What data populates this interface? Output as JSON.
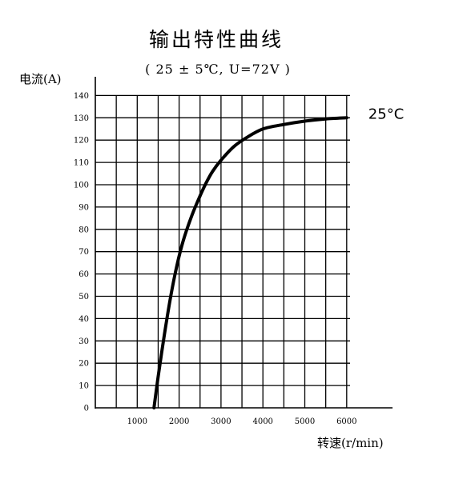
{
  "chart_data": {
    "type": "line",
    "title": "输出特性曲线",
    "subtitle": "( 25 ± 5℃, U=72V )",
    "ylabel": "电流(A)",
    "xlabel": "转速(r/min)",
    "xlim": [
      0,
      6000
    ],
    "ylim": [
      0,
      140
    ],
    "x_tick_labels": [
      "1000",
      "2000",
      "3000",
      "4000",
      "5000",
      "6000"
    ],
    "x_tick_values": [
      1000,
      2000,
      3000,
      4000,
      5000,
      6000
    ],
    "y_tick_labels": [
      "0",
      "10",
      "20",
      "30",
      "40",
      "50",
      "60",
      "70",
      "80",
      "90",
      "100",
      "110",
      "120",
      "130",
      "140"
    ],
    "y_tick_values": [
      0,
      10,
      20,
      30,
      40,
      50,
      60,
      70,
      80,
      90,
      100,
      110,
      120,
      130,
      140
    ],
    "grid": true,
    "series": [
      {
        "name": "25°C",
        "color": "#000000",
        "x": [
          1400,
          1500,
          1650,
          1800,
          1950,
          2100,
          2300,
          2500,
          2650,
          2800,
          3000,
          3300,
          3600,
          4000,
          4500,
          5000,
          5500,
          6000
        ],
        "y": [
          0,
          14,
          33,
          50,
          64,
          75,
          86,
          95,
          101,
          106,
          111,
          117,
          121,
          125,
          127,
          128.5,
          129.5,
          130
        ]
      }
    ]
  }
}
